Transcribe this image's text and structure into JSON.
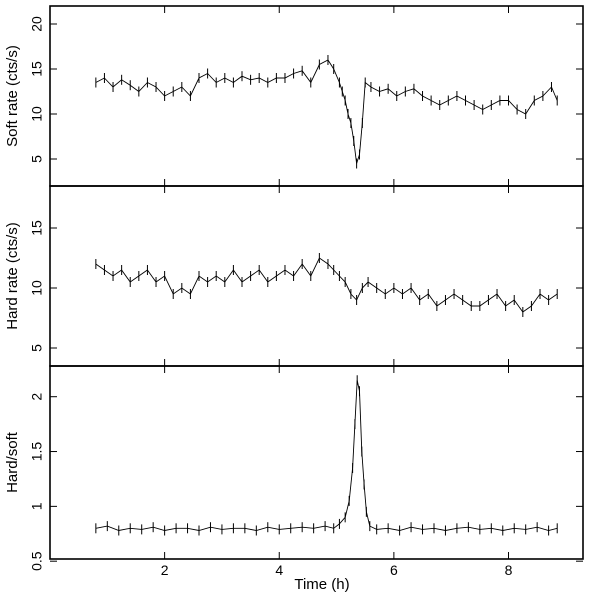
{
  "chart_data": [
    {
      "type": "line",
      "ylabel": "Soft rate (cts/s)",
      "xlim": [
        0,
        9.3
      ],
      "ylim": [
        2,
        22
      ],
      "yticks": [
        5,
        10,
        15,
        20
      ],
      "xticks": [
        2,
        4,
        6,
        8
      ],
      "series": [
        {
          "x": [
            0.8,
            0.95,
            1.1,
            1.25,
            1.4,
            1.55,
            1.7,
            1.85,
            2.0,
            2.15,
            2.3,
            2.45,
            2.6,
            2.75,
            2.9,
            3.05,
            3.2,
            3.35,
            3.5,
            3.65,
            3.8,
            3.95,
            4.1,
            4.25,
            4.4,
            4.55,
            4.7,
            4.85,
            4.95,
            5.05,
            5.1,
            5.15,
            5.2,
            5.25,
            5.3,
            5.35,
            5.4,
            5.45,
            5.5,
            5.6,
            5.75,
            5.9,
            6.05,
            6.2,
            6.35,
            6.5,
            6.65,
            6.8,
            6.95,
            7.1,
            7.25,
            7.4,
            7.55,
            7.7,
            7.85,
            8.0,
            8.15,
            8.3,
            8.45,
            8.6,
            8.75,
            8.85
          ],
          "y": [
            13.5,
            14.0,
            13.0,
            13.8,
            13.2,
            12.5,
            13.5,
            13.0,
            12.0,
            12.5,
            13.0,
            12.0,
            14.0,
            14.5,
            13.5,
            14.0,
            13.5,
            14.2,
            13.8,
            14.0,
            13.5,
            14.0,
            14.0,
            14.5,
            14.8,
            13.5,
            15.5,
            16.0,
            15.0,
            13.5,
            12.5,
            11.5,
            10.0,
            9.0,
            7.0,
            4.5,
            5.5,
            9.0,
            13.5,
            13.0,
            12.5,
            12.8,
            12.0,
            12.5,
            12.8,
            12.0,
            11.5,
            11.0,
            11.5,
            12.0,
            11.5,
            11.0,
            10.5,
            11.0,
            11.5,
            11.5,
            10.5,
            10.0,
            11.5,
            12.0,
            13.0,
            11.5
          ]
        }
      ]
    },
    {
      "type": "line",
      "ylabel": "Hard rate (cts/s)",
      "xlim": [
        0,
        9.3
      ],
      "ylim": [
        3.5,
        18.5
      ],
      "yticks": [
        5,
        10,
        15
      ],
      "xticks": [
        2,
        4,
        6,
        8
      ],
      "series": [
        {
          "x": [
            0.8,
            0.95,
            1.1,
            1.25,
            1.4,
            1.55,
            1.7,
            1.85,
            2.0,
            2.15,
            2.3,
            2.45,
            2.6,
            2.75,
            2.9,
            3.05,
            3.2,
            3.35,
            3.5,
            3.65,
            3.8,
            3.95,
            4.1,
            4.25,
            4.4,
            4.55,
            4.7,
            4.85,
            4.95,
            5.05,
            5.15,
            5.25,
            5.35,
            5.45,
            5.55,
            5.7,
            5.85,
            6.0,
            6.15,
            6.3,
            6.45,
            6.6,
            6.75,
            6.9,
            7.05,
            7.2,
            7.35,
            7.5,
            7.65,
            7.8,
            7.95,
            8.1,
            8.25,
            8.4,
            8.55,
            8.7,
            8.85
          ],
          "y": [
            12.0,
            11.5,
            11.0,
            11.5,
            10.5,
            11.0,
            11.5,
            10.5,
            11.0,
            9.5,
            10.0,
            9.5,
            11.0,
            10.5,
            11.0,
            10.5,
            11.5,
            10.5,
            11.0,
            11.5,
            10.5,
            11.0,
            11.5,
            11.0,
            12.0,
            11.0,
            12.5,
            12.0,
            11.5,
            11.0,
            10.5,
            9.5,
            9.0,
            10.0,
            10.5,
            10.0,
            9.5,
            10.0,
            9.5,
            10.0,
            9.0,
            9.5,
            8.5,
            9.0,
            9.5,
            9.0,
            8.5,
            8.5,
            9.0,
            9.5,
            8.5,
            9.0,
            8.0,
            8.5,
            9.5,
            9.0,
            9.5
          ]
        }
      ]
    },
    {
      "type": "line",
      "ylabel": "Hard/soft",
      "xlabel": "Time (h)",
      "xlim": [
        0,
        9.3
      ],
      "ylim": [
        0.52,
        2.28
      ],
      "yticks": [
        0.5,
        1,
        1.5,
        2
      ],
      "ytick_labels": [
        "0.5",
        "1",
        "1.5",
        "2"
      ],
      "xticks": [
        2,
        4,
        6,
        8
      ],
      "series": [
        {
          "x": [
            0.8,
            1.0,
            1.2,
            1.4,
            1.6,
            1.8,
            2.0,
            2.2,
            2.4,
            2.6,
            2.8,
            3.0,
            3.2,
            3.4,
            3.6,
            3.8,
            4.0,
            4.2,
            4.4,
            4.6,
            4.8,
            4.95,
            5.05,
            5.15,
            5.22,
            5.28,
            5.32,
            5.36,
            5.4,
            5.44,
            5.48,
            5.52,
            5.58,
            5.7,
            5.9,
            6.1,
            6.3,
            6.5,
            6.7,
            6.9,
            7.1,
            7.3,
            7.5,
            7.7,
            7.9,
            8.1,
            8.3,
            8.5,
            8.7,
            8.85
          ],
          "y": [
            0.8,
            0.82,
            0.78,
            0.8,
            0.79,
            0.81,
            0.78,
            0.8,
            0.8,
            0.78,
            0.81,
            0.79,
            0.8,
            0.8,
            0.78,
            0.81,
            0.79,
            0.8,
            0.81,
            0.8,
            0.82,
            0.8,
            0.84,
            0.9,
            1.05,
            1.35,
            1.75,
            2.15,
            2.05,
            1.5,
            1.2,
            0.95,
            0.82,
            0.79,
            0.8,
            0.78,
            0.81,
            0.79,
            0.8,
            0.78,
            0.8,
            0.81,
            0.79,
            0.8,
            0.78,
            0.8,
            0.79,
            0.81,
            0.78,
            0.8
          ]
        }
      ]
    }
  ]
}
